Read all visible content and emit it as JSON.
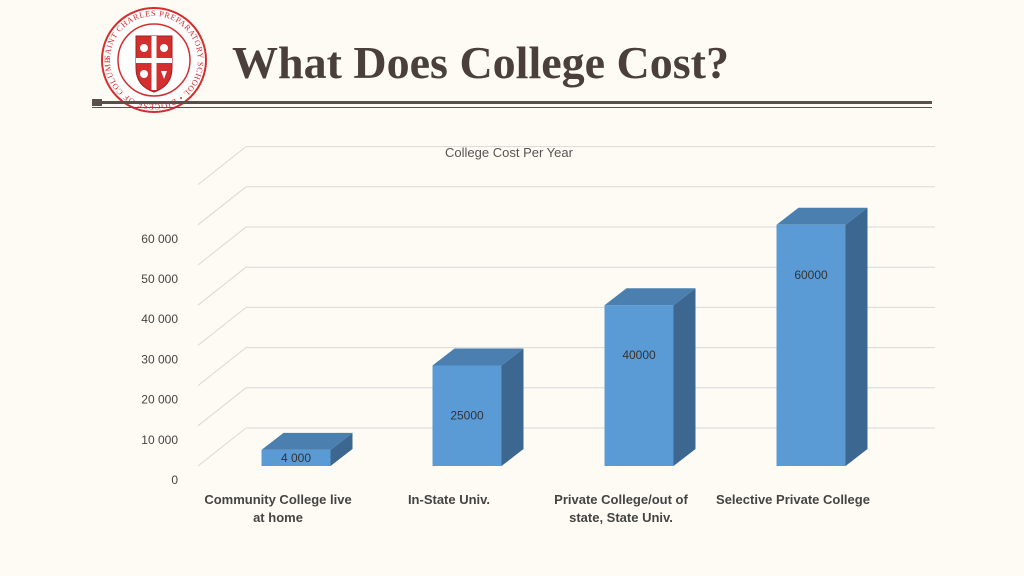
{
  "slide": {
    "title": "What Does College Cost?",
    "logo": {
      "icon": "school-seal",
      "ring_text": "SAINT CHARLES PREPARATORY SCHOOL • DIOCESE OF COLUMBUS",
      "color": "#d32f2f"
    }
  },
  "colors": {
    "bar_front": "#5b9bd5",
    "bar_side": "#3b6790",
    "bar_top": "#4a7fb0",
    "grid": "#d9d9d9",
    "title_text": "#4a3f3a"
  },
  "chart_data": {
    "type": "bar",
    "style": "3d-column",
    "title": "College Cost Per Year",
    "categories": [
      [
        "Community College live",
        "at home"
      ],
      [
        "In-State Univ."
      ],
      [
        "Private College/out of",
        "state, State Univ."
      ],
      [
        "Selective Private College"
      ]
    ],
    "values": [
      4000,
      25000,
      40000,
      60000
    ],
    "value_labels": [
      "4 000",
      "25000",
      "40000",
      "60000"
    ],
    "y_ticks": [
      "0",
      "10 000",
      "20 000",
      "30 000",
      "40 000",
      "50 000",
      "60 000"
    ],
    "ylim": [
      0,
      60000
    ],
    "grid": true,
    "legend": "none"
  }
}
